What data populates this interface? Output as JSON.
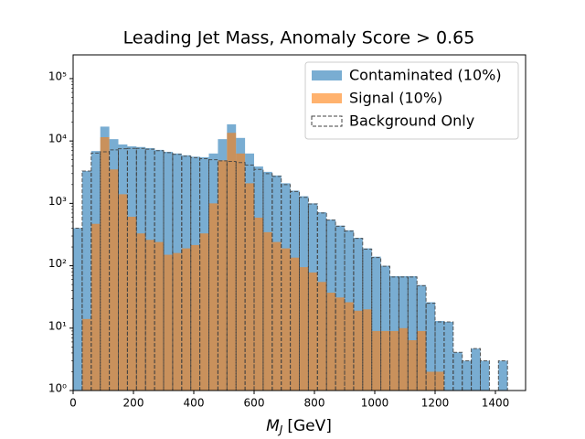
{
  "chart_data": {
    "type": "histogram",
    "title": "Leading Jet Mass, Anomaly Score > 0.65",
    "xlabel": {
      "symbol": "M",
      "subscript": "J",
      "unit": "[GeV]"
    },
    "bins": [
      0,
      30,
      60,
      90,
      120,
      150,
      180,
      210,
      240,
      270,
      300,
      330,
      360,
      390,
      420,
      450,
      480,
      510,
      540,
      570,
      600,
      630,
      660,
      690,
      720,
      750,
      780,
      810,
      840,
      870,
      900,
      930,
      960,
      990,
      1020,
      1050,
      1080,
      1110,
      1140,
      1170,
      1200,
      1230,
      1260,
      1290,
      1320,
      1350,
      1380,
      1410,
      1440,
      1470,
      1500
    ],
    "series": [
      {
        "name": "Contaminated (10%)",
        "color": "#1f77b4",
        "style": "filled",
        "values": [
          400,
          3300,
          6900,
          17000,
          10700,
          8800,
          8200,
          8000,
          7700,
          7200,
          6700,
          6300,
          5900,
          5600,
          5500,
          6300,
          10700,
          18500,
          11200,
          6300,
          3900,
          3200,
          2800,
          2100,
          1600,
          1300,
          1000,
          720,
          550,
          440,
          370,
          280,
          190,
          140,
          100,
          68,
          68,
          68,
          49,
          26,
          13,
          12.6,
          4.1,
          3,
          4.7,
          3,
          0,
          3,
          0,
          0
        ]
      },
      {
        "name": "Signal (10%)",
        "color": "#ff7f0e",
        "style": "filled",
        "values": [
          0,
          14,
          470,
          11500,
          3500,
          1400,
          610,
          330,
          260,
          240,
          150,
          160,
          190,
          215,
          330,
          1000,
          4900,
          13500,
          6300,
          2100,
          590,
          345,
          240,
          190,
          135,
          95,
          78,
          55,
          37,
          31,
          26,
          19,
          20,
          9,
          9,
          9,
          10,
          6.4,
          9,
          2,
          2,
          0,
          0,
          0,
          0,
          0,
          0,
          0,
          0,
          0
        ]
      },
      {
        "name": "Background Only",
        "color": "#404040",
        "style": "dashed-step",
        "values": [
          400,
          3300,
          6400,
          6700,
          7200,
          7500,
          7600,
          7600,
          7400,
          7000,
          6500,
          6100,
          5700,
          5400,
          5200,
          5000,
          4800,
          4700,
          4500,
          4100,
          3500,
          3000,
          2700,
          2000,
          1550,
          1250,
          980,
          700,
          540,
          430,
          360,
          275,
          185,
          135,
          98,
          66,
          66,
          66,
          48,
          25,
          12.6,
          12.6,
          4.1,
          3,
          4.7,
          3,
          0,
          3,
          0,
          0
        ]
      }
    ],
    "xlim": [
      0,
      1500
    ],
    "xticks": [
      0,
      200,
      400,
      600,
      800,
      1000,
      1200,
      1400
    ],
    "ylim": [
      1,
      240000
    ],
    "log_y": true,
    "yticks": [
      {
        "value": 1,
        "label": "10⁰"
      },
      {
        "value": 10,
        "label": "10¹"
      },
      {
        "value": 100,
        "label": "10²"
      },
      {
        "value": 1000,
        "label": "10³"
      },
      {
        "value": 10000,
        "label": "10⁴"
      },
      {
        "value": 100000,
        "label": "10⁵"
      }
    ],
    "legend": "upper right"
  }
}
